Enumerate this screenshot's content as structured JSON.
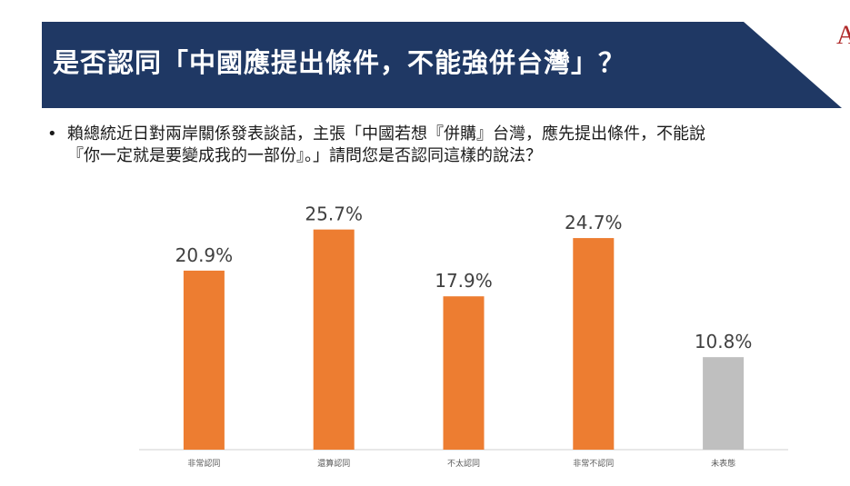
{
  "title": "是否認同「中國應提出條件，不能強併台灣」？",
  "corner_mark": "A",
  "question": {
    "bullet": "•",
    "line1": "賴總統近日對兩岸關係發表談話，主張「中國若想『併購』台灣，應先提出條件，不能說",
    "line2": "『你一定就是要變成我的一部份』。」請問您是否認同這樣的說法？"
  },
  "colors": {
    "banner": "#1f3864",
    "bar_primary": "#ed7d31",
    "bar_neutral": "#bfbfbf",
    "axis": "#d9d9d9",
    "label": "#404040",
    "tick": "#595959"
  },
  "chart_data": {
    "type": "bar",
    "categories": [
      "非常認同",
      "還算認同",
      "不太認同",
      "非常不認同",
      "未表態"
    ],
    "values": [
      20.9,
      25.7,
      17.9,
      24.7,
      10.8
    ],
    "data_labels": [
      "20.9%",
      "25.7%",
      "17.9%",
      "24.7%",
      "10.8%"
    ],
    "bar_colors": [
      "#ed7d31",
      "#ed7d31",
      "#ed7d31",
      "#ed7d31",
      "#bfbfbf"
    ],
    "title": "",
    "xlabel": "",
    "ylabel": "",
    "ylim": [
      0,
      30
    ],
    "grid": false,
    "legend": "none"
  }
}
